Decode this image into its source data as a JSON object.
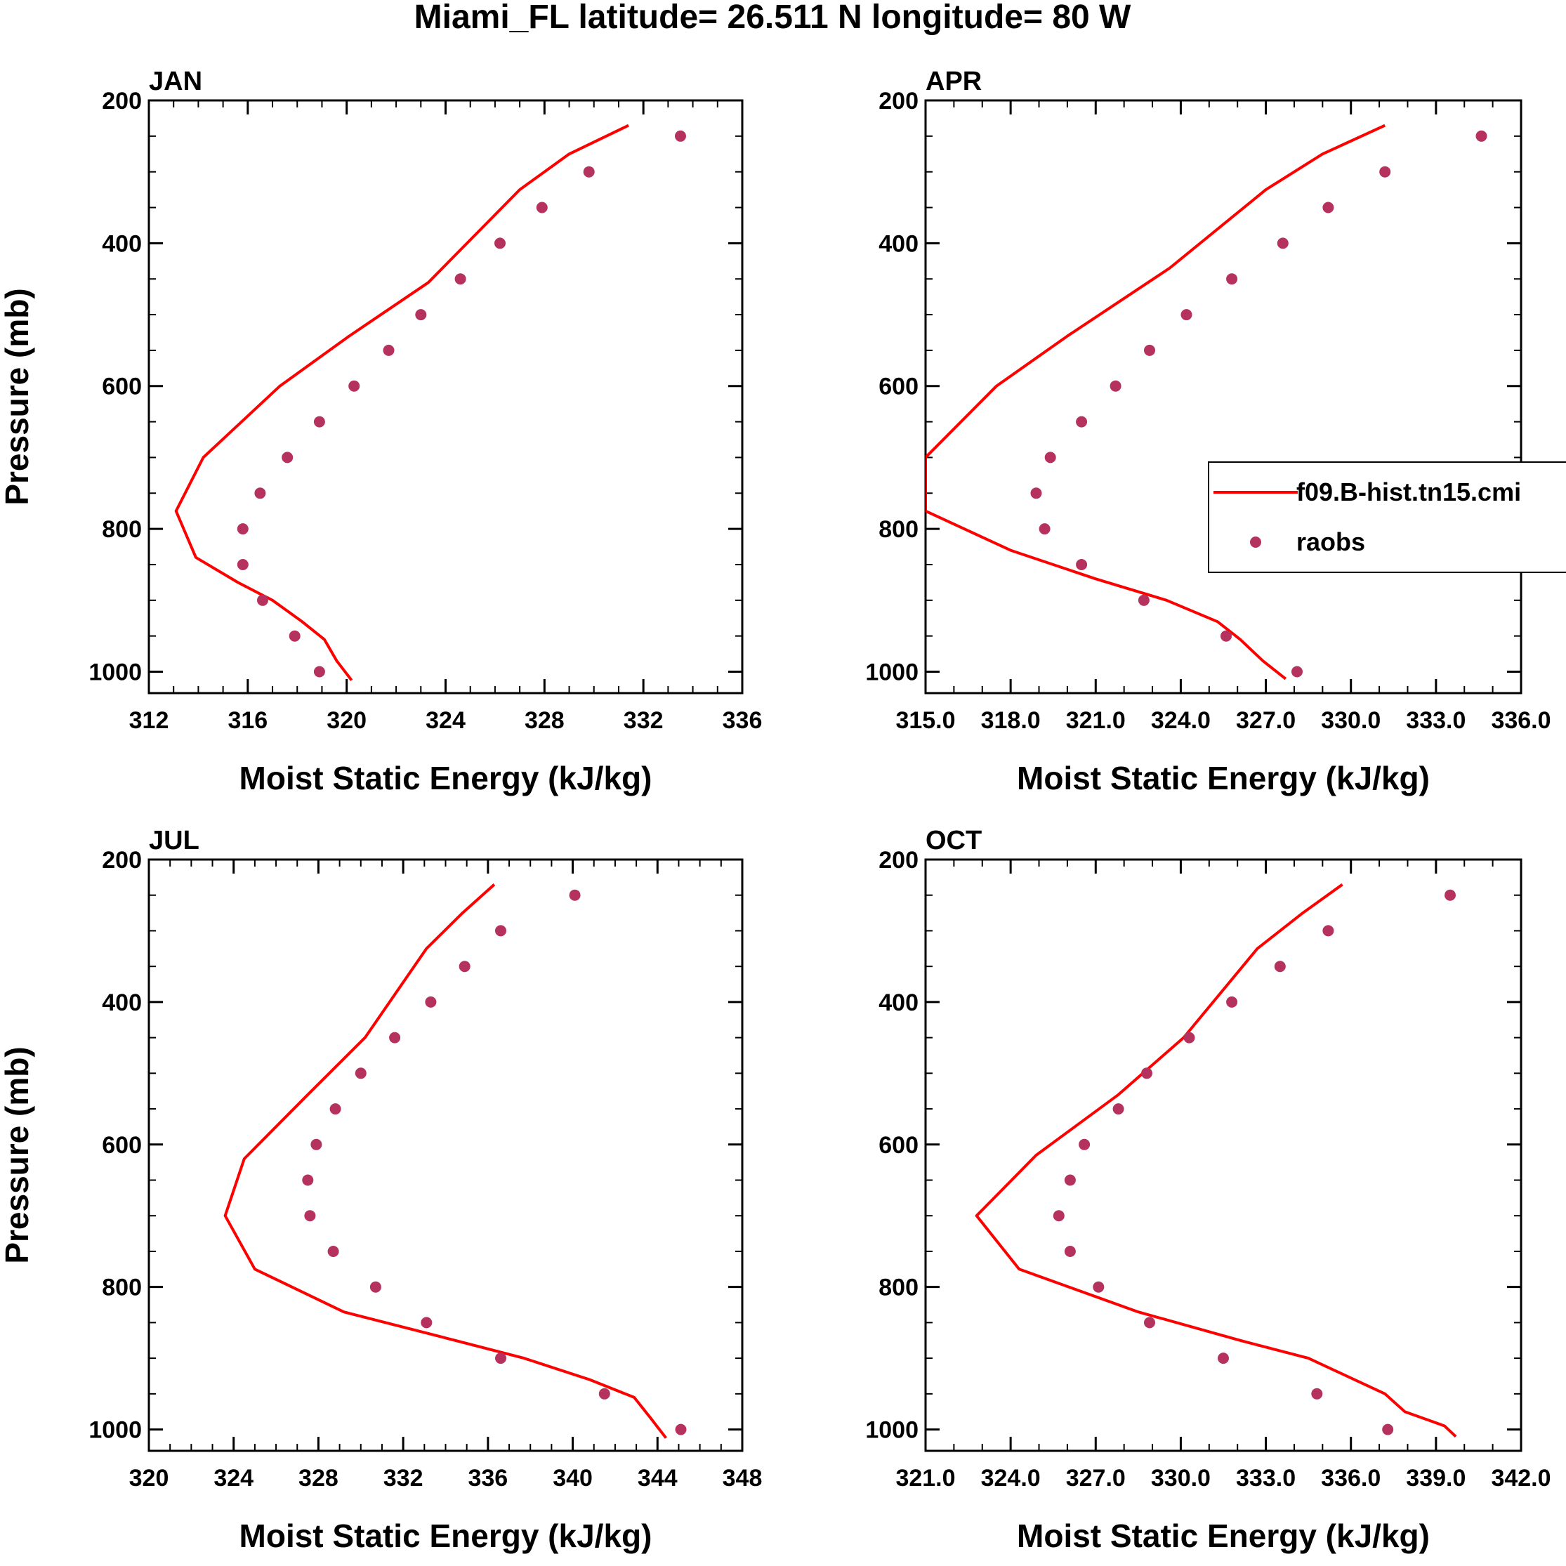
{
  "figure": {
    "title": "Miami_FL  latitude= 26.511 N longitude= 80 W"
  },
  "legend": {
    "line_label": "f09.B-hist.tn15.cmi",
    "marker_label": "raobs"
  },
  "colors": {
    "model_line": "#ff0000",
    "raobs_marker": "#b5325f",
    "axis": "#000000"
  },
  "chart_data": [
    {
      "type": "line",
      "panel": "JAN",
      "title": "JAN",
      "xlabel": "Moist Static Energy (kJ/kg)",
      "ylabel": "Pressure (mb)",
      "xlim": [
        312,
        336
      ],
      "ylim": [
        200,
        1030
      ],
      "y_inverted": true,
      "xticks": [
        312,
        316,
        320,
        324,
        328,
        332,
        336
      ],
      "xtick_labels": [
        "312",
        "316",
        "320",
        "324",
        "328",
        "332",
        "336"
      ],
      "x_minor_step": 1,
      "yticks": [
        200,
        400,
        600,
        800,
        1000
      ],
      "ytick_labels": [
        "200",
        "400",
        "600",
        "800",
        "1000"
      ],
      "y_minor_step": 50,
      "series": [
        {
          "name": "f09.B-hist.tn15.cmi",
          "kind": "line",
          "x": [
            331.4,
            329.0,
            327.0,
            323.3,
            320.1,
            317.3,
            314.2,
            313.1,
            313.9,
            315.6,
            317.0,
            318.2,
            319.1,
            319.6,
            320.2
          ],
          "y": [
            235,
            275,
            325,
            455,
            530,
            600,
            700,
            775,
            840,
            875,
            900,
            930,
            955,
            985,
            1012
          ]
        },
        {
          "name": "raobs",
          "kind": "scatter",
          "x": [
            333.5,
            329.8,
            327.9,
            326.2,
            324.6,
            323.0,
            321.7,
            320.3,
            318.9,
            317.6,
            316.5,
            315.8,
            315.8,
            316.6,
            317.9,
            318.9
          ],
          "y": [
            250,
            300,
            350,
            400,
            450,
            500,
            550,
            600,
            650,
            700,
            750,
            800,
            850,
            900,
            950,
            1000
          ]
        }
      ]
    },
    {
      "type": "line",
      "panel": "APR",
      "title": "APR",
      "xlabel": "Moist Static Energy (kJ/kg)",
      "ylabel": "",
      "xlim": [
        315,
        336
      ],
      "ylim": [
        200,
        1030
      ],
      "y_inverted": true,
      "xticks": [
        315,
        318,
        321,
        324,
        327,
        330,
        333,
        336
      ],
      "xtick_labels": [
        "315.0",
        "318.0",
        "321.0",
        "324.0",
        "327.0",
        "330.0",
        "333.0",
        "336.0"
      ],
      "x_minor_step": 1,
      "yticks": [
        200,
        400,
        600,
        800,
        1000
      ],
      "ytick_labels": [
        "200",
        "400",
        "600",
        "800",
        "1000"
      ],
      "y_minor_step": 50,
      "series": [
        {
          "name": "f09.B-hist.tn15.cmi",
          "kind": "line",
          "x": [
            331.2,
            329.0,
            327.0,
            323.6,
            320.0,
            317.5,
            315.0,
            315.0,
            318.0,
            321.0,
            323.5,
            325.3,
            326.1,
            326.9,
            327.7
          ],
          "y": [
            235,
            275,
            325,
            435,
            530,
            600,
            700,
            775,
            830,
            870,
            900,
            930,
            955,
            985,
            1010
          ]
        },
        {
          "name": "raobs",
          "kind": "scatter",
          "x": [
            334.6,
            331.2,
            329.2,
            327.6,
            325.8,
            324.2,
            322.9,
            321.7,
            320.5,
            319.4,
            318.9,
            319.2,
            320.5,
            322.7,
            325.6,
            328.1
          ],
          "y": [
            250,
            300,
            350,
            400,
            450,
            500,
            550,
            600,
            650,
            700,
            750,
            800,
            850,
            900,
            950,
            1000
          ]
        }
      ]
    },
    {
      "type": "line",
      "panel": "JUL",
      "title": "JUL",
      "xlabel": "Moist Static Energy (kJ/kg)",
      "ylabel": "Pressure (mb)",
      "xlim": [
        320,
        348
      ],
      "ylim": [
        200,
        1030
      ],
      "y_inverted": true,
      "xticks": [
        320,
        324,
        328,
        332,
        336,
        340,
        344,
        348
      ],
      "xtick_labels": [
        "320",
        "324",
        "328",
        "332",
        "336",
        "340",
        "344",
        "348"
      ],
      "x_minor_step": 1,
      "yticks": [
        200,
        400,
        600,
        800,
        1000
      ],
      "ytick_labels": [
        "200",
        "400",
        "600",
        "800",
        "1000"
      ],
      "y_minor_step": 50,
      "series": [
        {
          "name": "f09.B-hist.tn15.cmi",
          "kind": "line",
          "x": [
            336.3,
            334.8,
            333.1,
            330.2,
            327.5,
            324.5,
            323.6,
            325.0,
            329.2,
            333.8,
            337.7,
            340.8,
            342.9,
            343.7,
            344.4
          ],
          "y": [
            235,
            275,
            325,
            450,
            530,
            620,
            700,
            775,
            835,
            870,
            900,
            930,
            955,
            985,
            1012
          ]
        },
        {
          "name": "raobs",
          "kind": "scatter",
          "x": [
            340.1,
            336.6,
            334.9,
            333.3,
            331.6,
            330.0,
            328.8,
            327.9,
            327.5,
            327.6,
            328.7,
            330.7,
            333.1,
            336.6,
            341.5,
            345.1
          ],
          "y": [
            250,
            300,
            350,
            400,
            450,
            500,
            550,
            600,
            650,
            700,
            750,
            800,
            850,
            900,
            950,
            1000
          ]
        }
      ]
    },
    {
      "type": "line",
      "panel": "OCT",
      "title": "OCT",
      "xlabel": "Moist Static Energy (kJ/kg)",
      "ylabel": "",
      "xlim": [
        321,
        342
      ],
      "ylim": [
        200,
        1030
      ],
      "y_inverted": true,
      "xticks": [
        321,
        324,
        327,
        330,
        333,
        336,
        339,
        342
      ],
      "xtick_labels": [
        "321.0",
        "324.0",
        "327.0",
        "330.0",
        "333.0",
        "336.0",
        "339.0",
        "342.0"
      ],
      "x_minor_step": 1,
      "yticks": [
        200,
        400,
        600,
        800,
        1000
      ],
      "ytick_labels": [
        "200",
        "400",
        "600",
        "800",
        "1000"
      ],
      "y_minor_step": 50,
      "series": [
        {
          "name": "f09.B-hist.tn15.cmi",
          "kind": "line",
          "x": [
            335.7,
            334.3,
            332.7,
            330.1,
            327.8,
            324.9,
            322.8,
            324.3,
            328.5,
            332.1,
            334.5,
            337.2,
            337.9,
            339.3,
            339.7
          ],
          "y": [
            235,
            275,
            325,
            450,
            530,
            615,
            700,
            775,
            835,
            875,
            900,
            950,
            975,
            995,
            1010
          ]
        },
        {
          "name": "raobs",
          "kind": "scatter",
          "x": [
            339.5,
            335.2,
            333.5,
            331.8,
            330.3,
            328.8,
            327.8,
            326.6,
            326.1,
            325.7,
            326.1,
            327.1,
            328.9,
            331.5,
            334.8,
            337.3
          ],
          "y": [
            250,
            300,
            350,
            400,
            450,
            500,
            550,
            600,
            650,
            700,
            750,
            800,
            850,
            900,
            950,
            1000
          ]
        }
      ]
    }
  ]
}
